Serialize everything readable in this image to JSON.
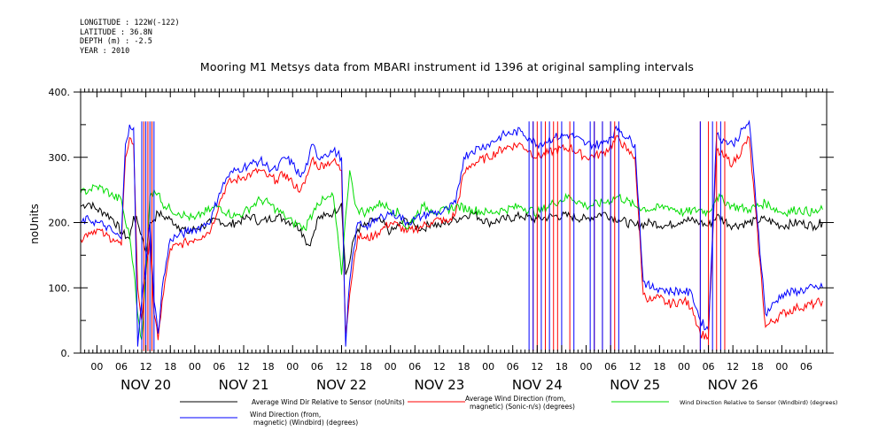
{
  "meta": {
    "longitude": "LONGITUDE : 122W(-122)",
    "latitude": "LATITUDE : 36.8N",
    "depth": "DEPTH (m) : -2.5",
    "year": "YEAR : 2010"
  },
  "chart_data": {
    "type": "line",
    "title": "Mooring M1 Metsys data from MBARI instrument id 1396 at original sampling intervals",
    "ylabel": "noUnits",
    "xlabel": "",
    "ylim": [
      0,
      400
    ],
    "y_ticks": [
      0,
      100,
      200,
      300,
      400
    ],
    "y_tick_labels": [
      "0.",
      "100.",
      "200.",
      "300.",
      "400."
    ],
    "xlim": [
      -4,
      179
    ],
    "x_units": "hours since NOV 20 00:00 (2010)",
    "hour_ticks": [
      {
        "x": 0,
        "label": "00"
      },
      {
        "x": 6,
        "label": "06"
      },
      {
        "x": 12,
        "label": "12"
      },
      {
        "x": 18,
        "label": "18"
      },
      {
        "x": 24,
        "label": "00"
      },
      {
        "x": 30,
        "label": "06"
      },
      {
        "x": 36,
        "label": "12"
      },
      {
        "x": 42,
        "label": "18"
      },
      {
        "x": 48,
        "label": "00"
      },
      {
        "x": 54,
        "label": "06"
      },
      {
        "x": 60,
        "label": "12"
      },
      {
        "x": 66,
        "label": "18"
      },
      {
        "x": 72,
        "label": "00"
      },
      {
        "x": 78,
        "label": "06"
      },
      {
        "x": 84,
        "label": "12"
      },
      {
        "x": 90,
        "label": "18"
      },
      {
        "x": 96,
        "label": "00"
      },
      {
        "x": 102,
        "label": "06"
      },
      {
        "x": 108,
        "label": "12"
      },
      {
        "x": 114,
        "label": "18"
      },
      {
        "x": 120,
        "label": "00"
      },
      {
        "x": 126,
        "label": "06"
      },
      {
        "x": 132,
        "label": "12"
      },
      {
        "x": 138,
        "label": "18"
      },
      {
        "x": 144,
        "label": "00"
      },
      {
        "x": 150,
        "label": "06"
      },
      {
        "x": 156,
        "label": "12"
      },
      {
        "x": 162,
        "label": "18"
      },
      {
        "x": 168,
        "label": "00"
      },
      {
        "x": 174,
        "label": "06"
      }
    ],
    "day_labels": [
      {
        "x": 12,
        "label": "NOV 20"
      },
      {
        "x": 36,
        "label": "NOV 21"
      },
      {
        "x": 60,
        "label": "NOV 22"
      },
      {
        "x": 84,
        "label": "NOV 23"
      },
      {
        "x": 108,
        "label": "NOV 24"
      },
      {
        "x": 132,
        "label": "NOV 25"
      },
      {
        "x": 156,
        "label": "NOV 26"
      }
    ],
    "grid": false,
    "legend_position": "bottom",
    "series": [
      {
        "name": "Average Wind Dir Relative to Sensor (noUnits)",
        "color": "#000000",
        "x": [
          -4,
          -2,
          0,
          2,
          4,
          6,
          8,
          9,
          10,
          11,
          12,
          13,
          14,
          15,
          16,
          18,
          20,
          22,
          24,
          26,
          28,
          30,
          32,
          34,
          36,
          38,
          40,
          42,
          44,
          46,
          48,
          50,
          51,
          52,
          53,
          54,
          56,
          58,
          60,
          61,
          62,
          63,
          64,
          66,
          68,
          70,
          72,
          74,
          76,
          78,
          80,
          82,
          84,
          86,
          88,
          90,
          92,
          96,
          100,
          104,
          108,
          112,
          116,
          120,
          124,
          128,
          132,
          136,
          140,
          144,
          148,
          150,
          152,
          156,
          160,
          164,
          168,
          172,
          176,
          178
        ],
        "y": [
          225,
          230,
          220,
          215,
          205,
          185,
          175,
          210,
          200,
          180,
          155,
          200,
          205,
          215,
          210,
          205,
          195,
          185,
          190,
          195,
          200,
          205,
          195,
          200,
          205,
          210,
          200,
          205,
          210,
          205,
          200,
          190,
          175,
          165,
          180,
          205,
          210,
          215,
          230,
          120,
          140,
          175,
          190,
          195,
          205,
          200,
          185,
          195,
          205,
          195,
          190,
          200,
          195,
          200,
          205,
          210,
          215,
          200,
          205,
          210,
          205,
          210,
          210,
          205,
          215,
          205,
          195,
          200,
          195,
          205,
          200,
          195,
          210,
          195,
          200,
          205,
          195,
          200,
          195,
          200
        ]
      },
      {
        "name": "Average Wind Direction (from, magnetic) (Sonic-n/s) (degrees)",
        "color": "#ff0000",
        "x": [
          -4,
          -2,
          0,
          2,
          4,
          6,
          7,
          8,
          9,
          10,
          11,
          12,
          13,
          14,
          15,
          16,
          18,
          20,
          22,
          24,
          26,
          28,
          30,
          32,
          34,
          36,
          38,
          40,
          42,
          44,
          46,
          48,
          50,
          51,
          52,
          53,
          54,
          56,
          58,
          60,
          61,
          62,
          63,
          64,
          66,
          68,
          70,
          72,
          74,
          76,
          78,
          80,
          82,
          84,
          86,
          88,
          90,
          92,
          96,
          100,
          104,
          106,
          108,
          112,
          116,
          120,
          124,
          128,
          130,
          132,
          134,
          136,
          138,
          140,
          144,
          146,
          148,
          150,
          152,
          154,
          156,
          160,
          164,
          168,
          172,
          176,
          178
        ],
        "y": [
          175,
          185,
          190,
          180,
          175,
          165,
          300,
          330,
          320,
          100,
          50,
          120,
          180,
          60,
          20,
          80,
          160,
          165,
          170,
          175,
          180,
          190,
          230,
          260,
          265,
          270,
          275,
          280,
          270,
          265,
          275,
          260,
          250,
          260,
          280,
          300,
          285,
          290,
          295,
          280,
          30,
          90,
          140,
          180,
          175,
          180,
          190,
          200,
          195,
          185,
          190,
          195,
          200,
          205,
          200,
          215,
          275,
          290,
          300,
          315,
          320,
          310,
          300,
          310,
          315,
          300,
          305,
          330,
          310,
          300,
          90,
          80,
          85,
          75,
          80,
          70,
          30,
          25,
          310,
          300,
          290,
          330,
          40,
          60,
          70,
          75,
          80
        ]
      },
      {
        "name": "Wind Direction Relative to Sensor (Windbird) (degrees)",
        "color": "#00dd00",
        "x": [
          -4,
          -2,
          0,
          2,
          4,
          6,
          7,
          8,
          9,
          10,
          11,
          12,
          13,
          14,
          15,
          16,
          18,
          20,
          22,
          24,
          26,
          28,
          30,
          32,
          34,
          36,
          38,
          40,
          42,
          44,
          46,
          48,
          50,
          51,
          52,
          53,
          54,
          56,
          58,
          60,
          61,
          62,
          63,
          64,
          66,
          68,
          70,
          72,
          74,
          76,
          78,
          80,
          82,
          84,
          88,
          92,
          96,
          100,
          104,
          108,
          112,
          116,
          120,
          124,
          128,
          132,
          136,
          140,
          144,
          148,
          150,
          152,
          156,
          160,
          164,
          168,
          172,
          176,
          178
        ],
        "y": [
          245,
          250,
          255,
          250,
          240,
          235,
          200,
          180,
          130,
          60,
          20,
          120,
          240,
          250,
          245,
          230,
          220,
          215,
          210,
          205,
          215,
          220,
          225,
          215,
          210,
          215,
          225,
          235,
          230,
          220,
          210,
          200,
          195,
          190,
          205,
          215,
          230,
          235,
          240,
          120,
          210,
          280,
          240,
          220,
          215,
          225,
          230,
          220,
          215,
          190,
          210,
          225,
          220,
          215,
          225,
          220,
          215,
          220,
          225,
          215,
          230,
          240,
          225,
          230,
          240,
          225,
          220,
          225,
          215,
          220,
          215,
          240,
          225,
          220,
          230,
          215,
          220,
          215,
          220
        ]
      },
      {
        "name": "Wind Direction (from, magnetic) (Windbird) (degrees)",
        "color": "#0000ff",
        "x": [
          -4,
          -2,
          0,
          2,
          4,
          6,
          7,
          8,
          9,
          10,
          11,
          12,
          13,
          14,
          15,
          16,
          18,
          20,
          22,
          24,
          26,
          28,
          30,
          32,
          34,
          36,
          38,
          40,
          42,
          44,
          46,
          48,
          50,
          51,
          52,
          53,
          54,
          56,
          58,
          60,
          61,
          62,
          63,
          64,
          66,
          68,
          70,
          72,
          74,
          76,
          78,
          80,
          82,
          84,
          86,
          88,
          90,
          92,
          96,
          100,
          104,
          106,
          108,
          112,
          116,
          120,
          124,
          128,
          130,
          132,
          134,
          136,
          138,
          140,
          144,
          146,
          148,
          150,
          152,
          154,
          156,
          160,
          164,
          168,
          172,
          176,
          178
        ],
        "y": [
          200,
          205,
          200,
          195,
          185,
          175,
          320,
          350,
          345,
          10,
          80,
          140,
          200,
          80,
          30,
          100,
          175,
          180,
          185,
          190,
          195,
          205,
          245,
          270,
          280,
          285,
          290,
          295,
          285,
          280,
          300,
          290,
          270,
          280,
          300,
          320,
          300,
          305,
          310,
          300,
          10,
          110,
          160,
          200,
          195,
          200,
          210,
          215,
          210,
          200,
          205,
          210,
          215,
          215,
          220,
          230,
          300,
          310,
          320,
          335,
          340,
          330,
          320,
          330,
          335,
          320,
          320,
          345,
          330,
          320,
          110,
          100,
          100,
          95,
          95,
          90,
          50,
          35,
          335,
          325,
          320,
          355,
          60,
          90,
          95,
          100,
          100
        ]
      }
    ],
    "drops": [
      {
        "series": 1,
        "x": [
          11.5,
          12.5,
          13.5,
          107,
          108,
          110,
          112,
          113,
          116,
          122,
          124,
          126,
          127,
          148,
          150,
          152,
          154
        ]
      },
      {
        "series": 3,
        "x": [
          11,
          12,
          13,
          14,
          106,
          107,
          109,
          111,
          114,
          117,
          121,
          122,
          124,
          126,
          128,
          148,
          151,
          153
        ]
      }
    ]
  },
  "legend": {
    "black_line1": "Average Wind Dir Relative to Sensor (noUnits)",
    "red_line1": "Average Wind Direction (from,",
    "red_line2": "magnetic) (Sonic-n/s) (degrees)",
    "green_line1": "Wind Direction Relative to Sensor (Windbird) (degrees)",
    "blue_line1": "Wind Direction (from,",
    "blue_line2": "magnetic) (Windbird) (degrees)"
  }
}
